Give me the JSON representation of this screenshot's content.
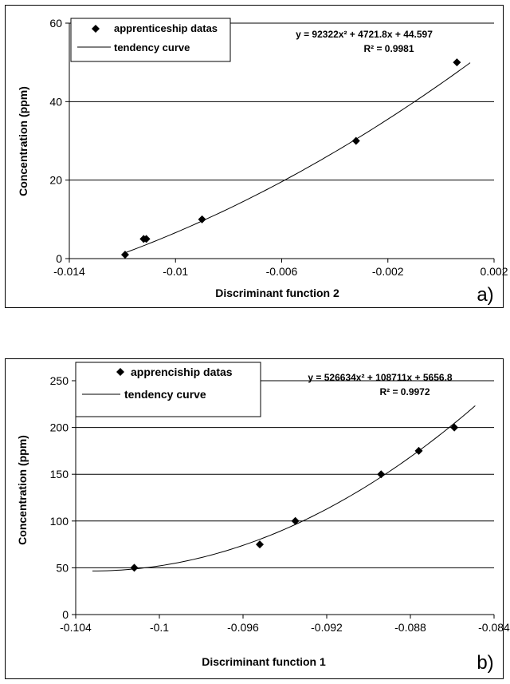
{
  "chart_data": [
    {
      "type": "scatter",
      "panel_label": "a)",
      "xlabel": "Discriminant function 2",
      "ylabel": "Concentration (ppm)",
      "xlim": [
        -0.014,
        0.002
      ],
      "ylim": [
        0,
        60
      ],
      "xticks": [
        -0.014,
        -0.01,
        -0.006,
        -0.002,
        0.002
      ],
      "xtick_labels": [
        "-0.014",
        "-0.01",
        "-0.006",
        "-0.002",
        "0.002"
      ],
      "yticks": [
        0,
        20,
        40,
        60
      ],
      "ytick_labels": [
        "0",
        "20",
        "40",
        "60"
      ],
      "grid": "horizontal",
      "legend_position": "top-left",
      "equation": "y = 92322x² + 4721.8x + 44.597",
      "r_squared": "R² = 0.9981",
      "series": [
        {
          "name": "apprenticeship datas",
          "kind": "points",
          "color": "#000000",
          "x": [
            -0.0119,
            -0.0112,
            -0.0111,
            -0.009,
            -0.0032,
            0.0006
          ],
          "y": [
            1,
            5,
            5,
            10,
            30,
            50
          ]
        },
        {
          "name": "tendency curve",
          "kind": "line",
          "color": "#000000",
          "coefficients": [
            92322,
            4721.8,
            44.597
          ],
          "x_range": [
            -0.012,
            0.0011
          ]
        }
      ]
    },
    {
      "type": "scatter",
      "panel_label": "b)",
      "xlabel": "Discriminant function 1",
      "ylabel": "Concentration (ppm)",
      "xlim": [
        -0.104,
        -0.084
      ],
      "ylim": [
        0,
        250
      ],
      "xticks": [
        -0.104,
        -0.1,
        -0.096,
        -0.092,
        -0.088,
        -0.084
      ],
      "xtick_labels": [
        "-0.104",
        "-0.1",
        "-0.096",
        "-0.092",
        "-0.088",
        "-0.084"
      ],
      "yticks": [
        0,
        50,
        100,
        150,
        200,
        250
      ],
      "ytick_labels": [
        "0",
        "50",
        "100",
        "150",
        "200",
        "250"
      ],
      "grid": "horizontal",
      "legend_position": "top-left",
      "equation": "y = 526634x² + 108711x + 5656.8",
      "r_squared": "R² = 0.9972",
      "series": [
        {
          "name": "apprenciship datas",
          "kind": "points",
          "color": "#000000",
          "x": [
            -0.1012,
            -0.0952,
            -0.0935,
            -0.0894,
            -0.0876,
            -0.0859
          ],
          "y": [
            50,
            75,
            100,
            150,
            175,
            200
          ]
        },
        {
          "name": "tendency curve",
          "kind": "line",
          "color": "#000000",
          "coefficients": [
            526634,
            108711,
            5656.8
          ],
          "x_range": [
            -0.1032,
            -0.0849
          ]
        }
      ]
    }
  ]
}
